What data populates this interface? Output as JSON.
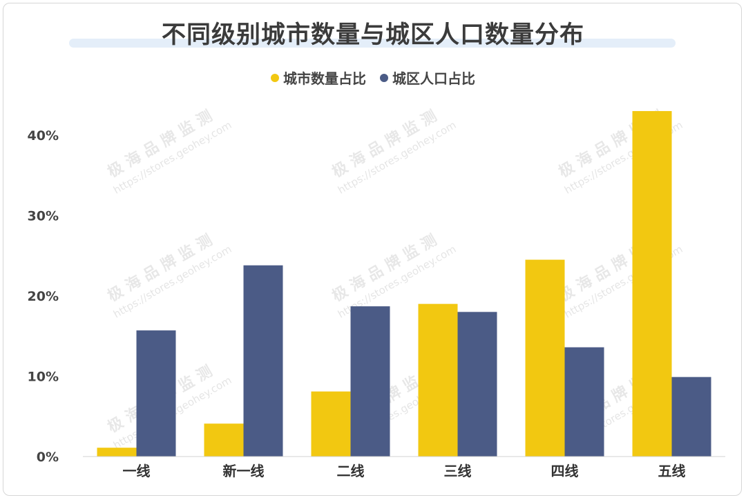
{
  "chart_data": {
    "type": "bar",
    "title": "不同级别城市数量与城区人口数量分布",
    "categories": [
      "一线",
      "新一线",
      "二线",
      "三线",
      "四线",
      "五线"
    ],
    "series": [
      {
        "name": "城市数量占比",
        "color": "#f2c811",
        "values": [
          1.1,
          4.1,
          8.1,
          19.0,
          24.5,
          43.0
        ]
      },
      {
        "name": "城区人口占比",
        "color": "#4b5b86",
        "values": [
          15.7,
          23.8,
          18.7,
          18.0,
          13.6,
          9.9
        ]
      }
    ],
    "ylim": [
      0,
      45
    ],
    "yticks": [
      {
        "value": 0,
        "label": "0%"
      },
      {
        "value": 10,
        "label": "10%"
      },
      {
        "value": 20,
        "label": "20%"
      },
      {
        "value": 30,
        "label": "30%"
      },
      {
        "value": 40,
        "label": "40%"
      }
    ],
    "legend_position": "top-center",
    "grid": false
  },
  "watermark": {
    "text": "极 海 品 牌 监 测",
    "url": "https://stores.geohey.com"
  }
}
